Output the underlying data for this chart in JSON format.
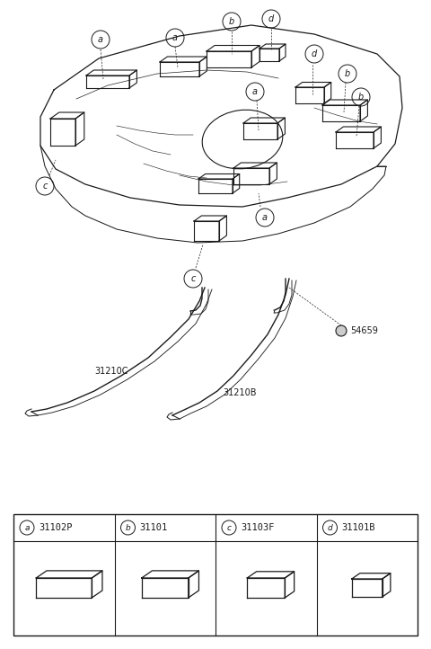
{
  "bg_color": "#ffffff",
  "line_color": "#1a1a1a",
  "parts": [
    {
      "letter": "a",
      "code": "31102P"
    },
    {
      "letter": "b",
      "code": "31101"
    },
    {
      "letter": "c",
      "code": "31103F"
    },
    {
      "letter": "d",
      "code": "31101B"
    }
  ]
}
